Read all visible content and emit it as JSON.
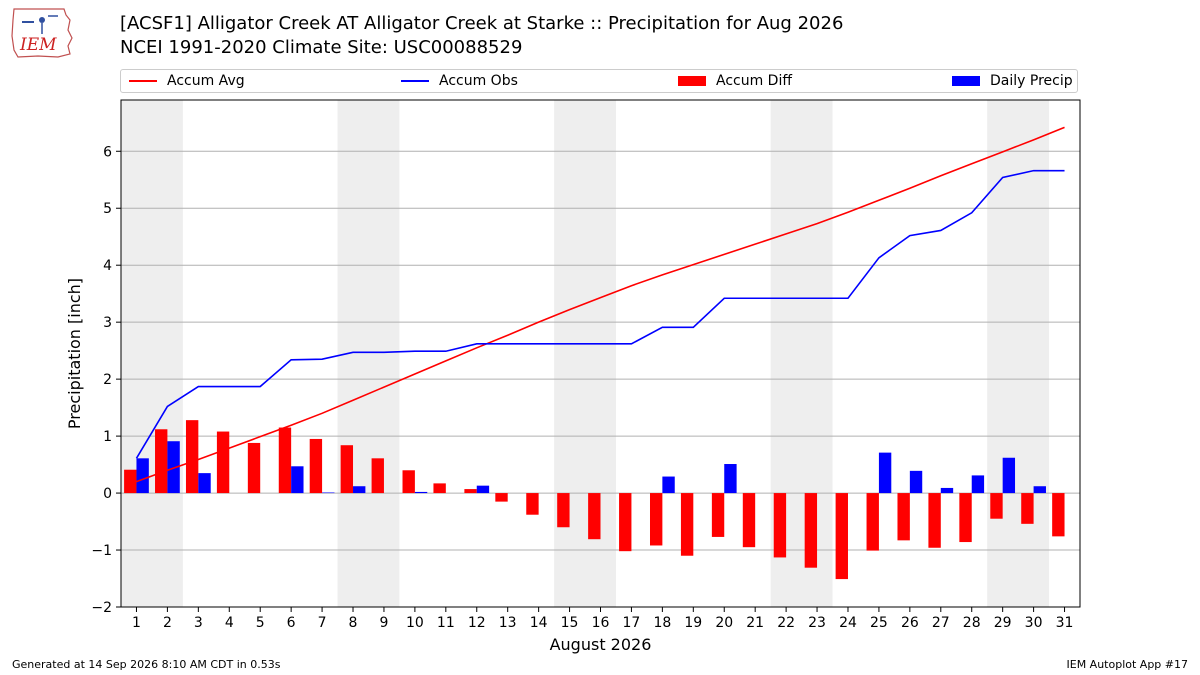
{
  "header": {
    "title": "[ACSF1] Alligator Creek  AT Alligator Creek at Starke :: Precipitation for Aug 2026",
    "subtitle": "NCEI 1991-2020 Climate Site: USC00088529",
    "logo_text": "IEM"
  },
  "footer": {
    "generated": "Generated at 14 Sep 2026 8:10 AM CDT in 0.53s",
    "app": "IEM Autoplot App #17"
  },
  "chart_data": {
    "type": "bar",
    "xlabel": "August 2026",
    "ylabel": "Precipitation [inch]",
    "ylim": [
      -2,
      6.9
    ],
    "xlim": [
      0.5,
      31.5
    ],
    "yticks": [
      -2,
      -1,
      0,
      1,
      2,
      3,
      4,
      5,
      6
    ],
    "grid": true,
    "legend_position": "top",
    "categories": [
      1,
      2,
      3,
      4,
      5,
      6,
      7,
      8,
      9,
      10,
      11,
      12,
      13,
      14,
      15,
      16,
      17,
      18,
      19,
      20,
      21,
      22,
      23,
      24,
      25,
      26,
      27,
      28,
      29,
      30,
      31
    ],
    "weekend_bands": [
      [
        1,
        2
      ],
      [
        8,
        9
      ],
      [
        15,
        16
      ],
      [
        22,
        23
      ],
      [
        29,
        30
      ]
    ],
    "series": [
      {
        "name": "Accum Avg",
        "kind": "line",
        "color": "#ff0000",
        "values": [
          0.2,
          0.4,
          0.59,
          0.79,
          0.99,
          1.19,
          1.4,
          1.63,
          1.86,
          2.09,
          2.32,
          2.55,
          2.77,
          3.0,
          3.22,
          3.43,
          3.64,
          3.83,
          4.01,
          4.19,
          4.37,
          4.55,
          4.73,
          4.93,
          5.14,
          5.35,
          5.57,
          5.78,
          5.99,
          6.2,
          6.42
        ]
      },
      {
        "name": "Accum Obs",
        "kind": "line",
        "color": "#0000ff",
        "values": [
          0.61,
          1.52,
          1.87,
          1.87,
          1.87,
          2.34,
          2.35,
          2.47,
          2.47,
          2.49,
          2.49,
          2.62,
          2.62,
          2.62,
          2.62,
          2.62,
          2.62,
          2.91,
          2.91,
          3.42,
          3.42,
          3.42,
          3.42,
          3.42,
          4.13,
          4.52,
          4.61,
          4.92,
          5.54,
          5.66,
          5.66
        ]
      },
      {
        "name": "Accum Diff",
        "kind": "bar",
        "color": "#ff0000",
        "values": [
          0.41,
          1.12,
          1.28,
          1.08,
          0.88,
          1.15,
          0.95,
          0.84,
          0.61,
          0.4,
          0.17,
          0.07,
          -0.15,
          -0.38,
          -0.6,
          -0.81,
          -1.02,
          -0.92,
          -1.1,
          -0.77,
          -0.95,
          -1.13,
          -1.31,
          -1.51,
          -1.01,
          -0.83,
          -0.96,
          -0.86,
          -0.45,
          -0.54,
          -0.76
        ]
      },
      {
        "name": "Daily Precip",
        "kind": "bar",
        "color": "#0000ff",
        "values": [
          0.61,
          0.91,
          0.35,
          0,
          0,
          0.47,
          0.01,
          0.12,
          0,
          0.02,
          0,
          0.13,
          0,
          0,
          0,
          0,
          0,
          0.29,
          0,
          0.51,
          0,
          0,
          0,
          0,
          0.71,
          0.39,
          0.09,
          0.31,
          0.62,
          0.12,
          0
        ]
      }
    ]
  }
}
